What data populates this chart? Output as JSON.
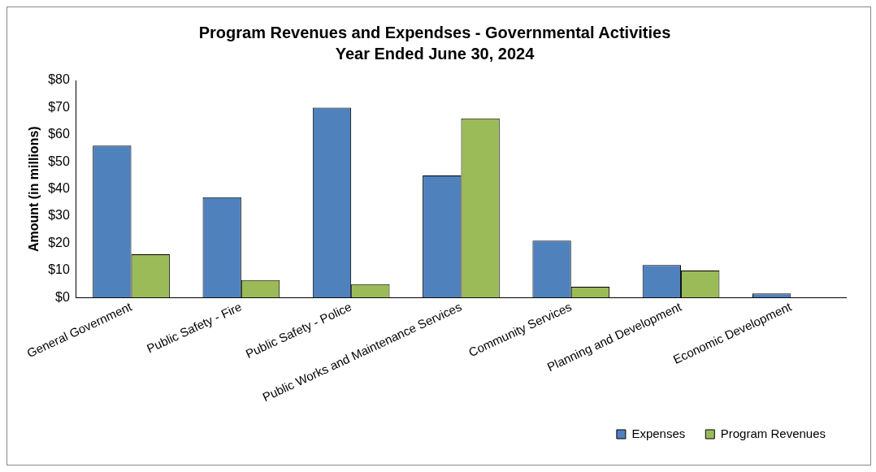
{
  "chart_data": {
    "type": "bar",
    "title": "Program Revenues and Expendses - Governmental Activities",
    "subtitle": "Year Ended June 30, 2024",
    "ylabel": "Amount (in millions)",
    "categories": [
      "General Government",
      "Public Safety - Fire",
      "Public Safety - Police",
      "Public Works and Maintenance Services",
      "Community Services",
      "Planning and Development",
      "Economic Development"
    ],
    "series": [
      {
        "name": "Expenses",
        "color": "#4f81bd",
        "values": [
          56,
          37,
          70,
          45,
          21,
          12,
          1.5
        ]
      },
      {
        "name": "Program Revenues",
        "color": "#9bbb59",
        "values": [
          16,
          6.5,
          5,
          66,
          4,
          10,
          0
        ]
      }
    ],
    "ylim": [
      0,
      80
    ],
    "yticks": [
      {
        "value": 0,
        "label": "$0"
      },
      {
        "value": 10,
        "label": "$10"
      },
      {
        "value": 20,
        "label": "$20"
      },
      {
        "value": 30,
        "label": "$30"
      },
      {
        "value": 40,
        "label": "$40"
      },
      {
        "value": 50,
        "label": "$50"
      },
      {
        "value": 60,
        "label": "$60"
      },
      {
        "value": 70,
        "label": "$70"
      },
      {
        "value": 80,
        "label": "$80"
      }
    ],
    "grid": false,
    "legend": "bottom right"
  }
}
